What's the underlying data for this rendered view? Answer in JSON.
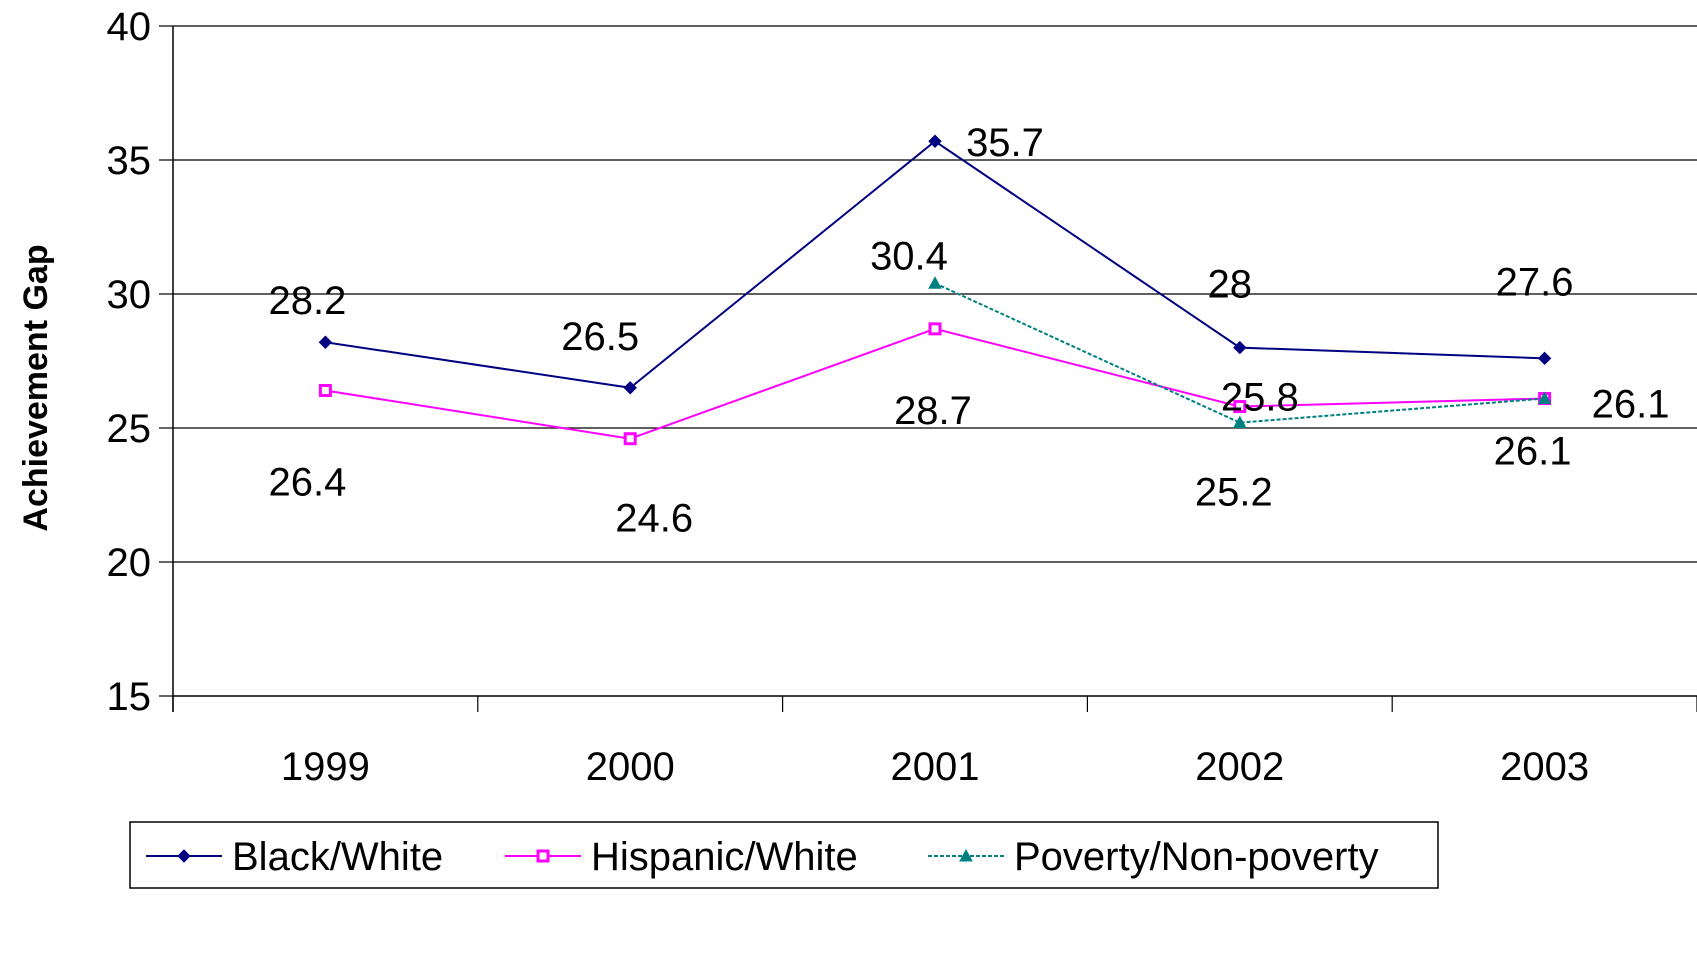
{
  "chart_data": {
    "type": "line",
    "title": "",
    "xlabel": "",
    "ylabel": "Achievement Gap",
    "ylim": [
      15,
      40
    ],
    "yticks": [
      15,
      20,
      25,
      30,
      35,
      40
    ],
    "categories": [
      "1999",
      "2000",
      "2001",
      "2002",
      "2003"
    ],
    "grid": "horizontal",
    "legend_position": "bottom",
    "series": [
      {
        "name": "Black/White",
        "color": "#000080",
        "marker": "diamond",
        "values": [
          28.2,
          26.5,
          35.7,
          28,
          27.6
        ],
        "labels": [
          "28.2",
          "26.5",
          "35.7",
          "28",
          "27.6"
        ]
      },
      {
        "name": "Hispanic/White",
        "color": "#ff00ff",
        "marker": "square",
        "values": [
          26.4,
          24.6,
          28.7,
          25.8,
          26.1
        ],
        "labels": [
          "26.4",
          "24.6",
          "28.7",
          "25.8",
          "26.1"
        ]
      },
      {
        "name": "Poverty/Non-poverty",
        "color": "#008080",
        "marker": "triangle",
        "values": [
          null,
          null,
          30.4,
          25.2,
          26.1
        ],
        "labels": [
          "",
          "",
          "30.4",
          "25.2",
          "26.1"
        ]
      }
    ]
  }
}
